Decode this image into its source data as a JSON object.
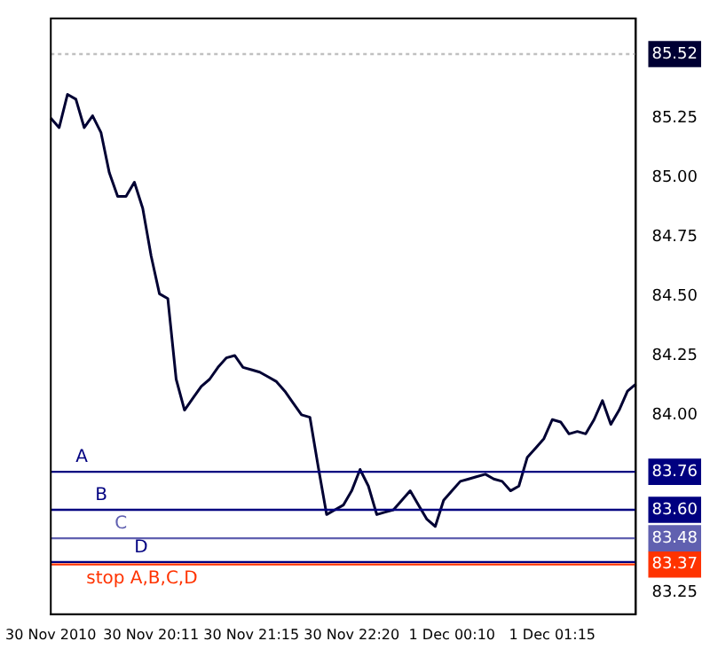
{
  "chart_data": {
    "type": "line",
    "categories": [
      "30 Nov 2010",
      null,
      null,
      null,
      null,
      null,
      null,
      null,
      null,
      null,
      null,
      null,
      "30 Nov 20:11",
      null,
      null,
      null,
      null,
      null,
      null,
      null,
      null,
      null,
      null,
      null,
      "30 Nov 21:15",
      null,
      null,
      null,
      null,
      null,
      null,
      null,
      null,
      null,
      null,
      null,
      "30 Nov 22:20",
      null,
      null,
      null,
      null,
      null,
      null,
      null,
      null,
      null,
      null,
      null,
      "1 Dec 00:10",
      null,
      null,
      null,
      null,
      null,
      null,
      null,
      null,
      null,
      null,
      null,
      "1 Dec 01:15",
      null,
      null,
      null,
      null,
      null,
      null,
      null,
      null,
      null,
      null
    ],
    "series": [
      {
        "color": "#000033",
        "values": [
          85.25,
          85.21,
          85.35,
          85.33,
          85.21,
          85.26,
          85.19,
          85.02,
          84.92,
          84.92,
          84.98,
          84.87,
          84.67,
          84.51,
          84.49,
          84.15,
          84.02,
          84.07,
          84.12,
          84.15,
          84.2,
          84.24,
          84.25,
          84.2,
          84.19,
          84.18,
          84.16,
          84.14,
          84.1,
          84.05,
          84.0,
          83.99,
          83.78,
          83.58,
          83.6,
          83.62,
          83.68,
          83.77,
          83.7,
          83.58,
          83.59,
          83.6,
          83.64,
          83.68,
          83.62,
          83.56,
          83.53,
          83.64,
          83.68,
          83.72,
          83.73,
          83.74,
          83.75,
          83.73,
          83.72,
          83.68,
          83.7,
          83.82,
          83.86,
          83.9,
          83.98,
          83.97,
          83.92,
          83.93,
          83.92,
          83.98,
          84.06,
          83.96,
          84.02,
          84.1,
          84.13
        ]
      }
    ],
    "ylim": [
      83.16,
      85.67
    ],
    "yticks": [
      {
        "value": 83.25,
        "label": "83.25"
      },
      {
        "value": 83.37,
        "label": "83.37"
      },
      {
        "value": 83.48,
        "label": "83.48"
      },
      {
        "value": 83.6,
        "label": "83.60"
      },
      {
        "value": 83.76,
        "label": "83.76"
      },
      {
        "value": 85.52,
        "label": "85.52"
      },
      {
        "value": 84,
        "label": "84.00"
      },
      {
        "value": 84.25,
        "label": "84.25"
      },
      {
        "value": 84.5,
        "label": "84.50"
      },
      {
        "value": 84.75,
        "label": "84.75"
      },
      {
        "value": 85,
        "label": "85.00"
      },
      {
        "value": 85.25,
        "label": "85.25"
      }
    ],
    "ref_lines": [
      {
        "axis": "y",
        "value": 85.52,
        "color": "#c0c0c0",
        "line_style": "dotted"
      },
      {
        "axis": "y",
        "value": 83.76,
        "label": "A",
        "color": "#000080"
      },
      {
        "axis": "y",
        "value": 83.6,
        "label": "B",
        "color": "#000080"
      },
      {
        "axis": "y",
        "value": 83.48,
        "label": "C",
        "color": "#6060b0"
      },
      {
        "axis": "y",
        "value": 83.38,
        "label": "D",
        "color": "#000080"
      },
      {
        "axis": "y",
        "value": 83.37,
        "label": "stop A,B,C,D",
        "color": "#ff3300"
      }
    ],
    "grid": false,
    "legend": false,
    "marker": "none",
    "line_style": "solid"
  }
}
